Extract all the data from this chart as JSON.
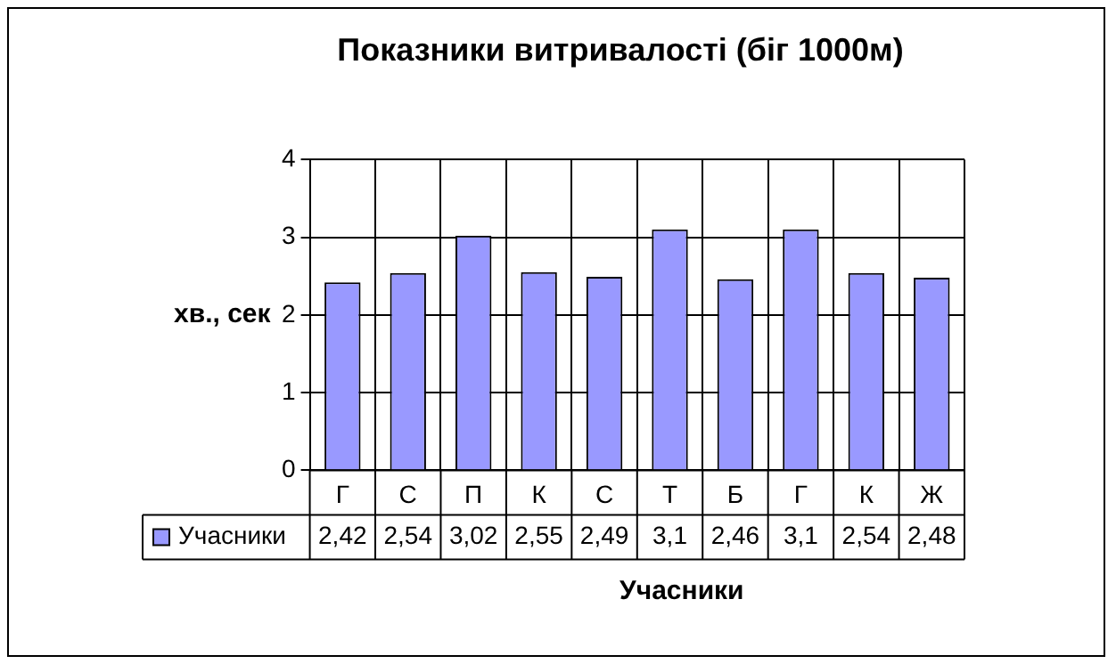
{
  "chart_data": {
    "type": "bar",
    "title": "Показники витривалості (біг 1000м)",
    "xlabel": "Учасники",
    "ylabel": "хв., сек",
    "categories": [
      "Г",
      "С",
      "П",
      "К",
      "С",
      "Т",
      "Б",
      "Г",
      "К",
      "Ж"
    ],
    "series": [
      {
        "name": "Учасники",
        "color": "#9999ff",
        "values": [
          2.42,
          2.54,
          3.02,
          2.55,
          2.49,
          3.1,
          2.46,
          3.1,
          2.54,
          2.48
        ],
        "value_labels": [
          "2,42",
          "2,54",
          "3,02",
          "2,55",
          "2,49",
          "3,1",
          "2,46",
          "3,1",
          "2,54",
          "2,48"
        ]
      }
    ],
    "ylim": [
      0,
      4
    ],
    "yticks": [
      0,
      1,
      2,
      3,
      4
    ],
    "grid": true,
    "legend": "bottom"
  }
}
